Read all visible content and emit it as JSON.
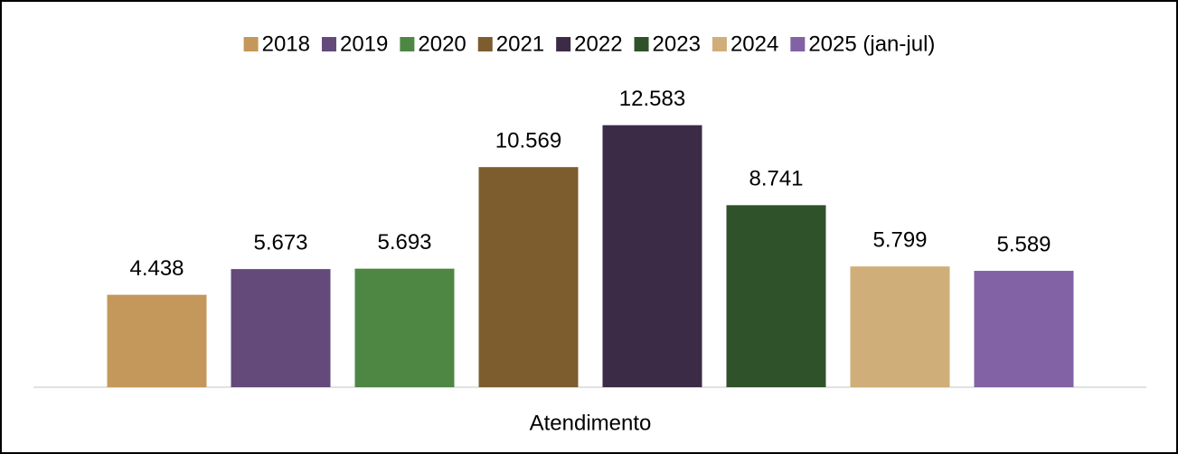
{
  "chart_data": {
    "type": "bar",
    "categories": [
      "Atendimento"
    ],
    "series": [
      {
        "name": "2018",
        "color": "#C4975A",
        "values": [
          4438
        ],
        "value_labels": [
          "4.438"
        ]
      },
      {
        "name": "2019",
        "color": "#634A7A",
        "values": [
          5673
        ],
        "value_labels": [
          "5.673"
        ]
      },
      {
        "name": "2020",
        "color": "#4E8744",
        "values": [
          5693
        ],
        "value_labels": [
          "5.693"
        ]
      },
      {
        "name": "2021",
        "color": "#7D5C2E",
        "values": [
          10569
        ],
        "value_labels": [
          "10.569"
        ]
      },
      {
        "name": "2022",
        "color": "#3B2B47",
        "values": [
          12583
        ],
        "value_labels": [
          "12.583"
        ]
      },
      {
        "name": "2023",
        "color": "#30522A",
        "values": [
          8741
        ],
        "value_labels": [
          "8.741"
        ]
      },
      {
        "name": "2024",
        "color": "#CFAE7A",
        "values": [
          5799
        ],
        "value_labels": [
          "5.799"
        ]
      },
      {
        "name": "2025 (jan-jul)",
        "color": "#8262A5",
        "values": [
          5589
        ],
        "value_labels": [
          "5.589"
        ]
      }
    ],
    "ylim": [
      0,
      14000
    ],
    "legend": "top"
  }
}
